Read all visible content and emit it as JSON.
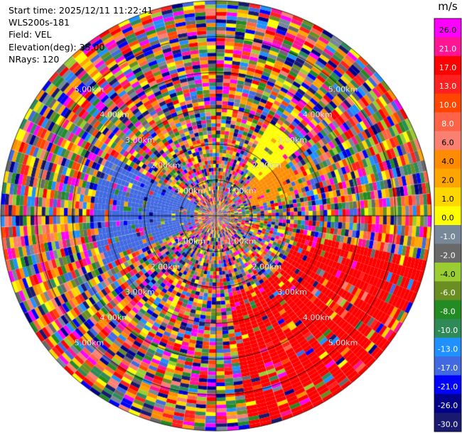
{
  "info": {
    "start_time": "Start time: 2025/12/11 11:22:41",
    "instrument": "WLS200s-181",
    "field": "Field: VEL",
    "elevation": "Elevation(deg): 35.00",
    "nrays": "NRays: 120"
  },
  "chart_data": {
    "type": "heatmap",
    "projection": "polar-ppi",
    "n_rays": 120,
    "n_gates": 58,
    "max_range_km": 6.0,
    "range_rings_km": [
      1.0,
      2.0,
      3.0,
      4.0,
      5.0,
      6.0
    ],
    "range_ring_labels": [
      "1.00km",
      "2.00km",
      "3.00km",
      "4.00km",
      "5.00km"
    ],
    "colorbar": {
      "unit": "m/s",
      "tick_labels": [
        "26.0",
        "21.0",
        "17.0",
        "13.0",
        "10.0",
        "8.0",
        "6.0",
        "4.0",
        "2.0",
        "1.0",
        "0.0",
        "-1.0",
        "-2.0",
        "-4.0",
        "-6.0",
        "-8.0",
        "-10.0",
        "-13.0",
        "-17.0",
        "-21.0",
        "-26.0",
        "-30.0"
      ],
      "colors": [
        "#ff00ff",
        "#ff1493",
        "#ff0000",
        "#ff2020",
        "#ff4500",
        "#ff6347",
        "#fa8072",
        "#ff8c00",
        "#ffa500",
        "#ffd700",
        "#ffff00",
        "#778899",
        "#696969",
        "#9acd32",
        "#6b8e23",
        "#228b22",
        "#2e8b57",
        "#1e90ff",
        "#4169e1",
        "#0000ff",
        "#00008b",
        "#191970"
      ]
    },
    "features": [
      {
        "description": "region of strong receding velocities",
        "azimuth_deg": [
          100,
          170
        ],
        "range_km": [
          2.2,
          6.0
        ],
        "value_ms": 17.0
      },
      {
        "description": "region of strong approaching velocities",
        "azimuth_deg": [
          245,
          300
        ],
        "range_km": [
          0.6,
          3.5
        ],
        "value_ms": -17.0
      },
      {
        "description": "positive velocity patch",
        "azimuth_deg": [
          45,
          75
        ],
        "range_km": [
          1.0,
          2.5
        ],
        "value_ms": 4.0
      },
      {
        "description": "near-zero velocity patch",
        "azimuth_deg": [
          30,
          50
        ],
        "range_km": [
          1.5,
          3.0
        ],
        "value_ms": 0.0
      }
    ]
  }
}
